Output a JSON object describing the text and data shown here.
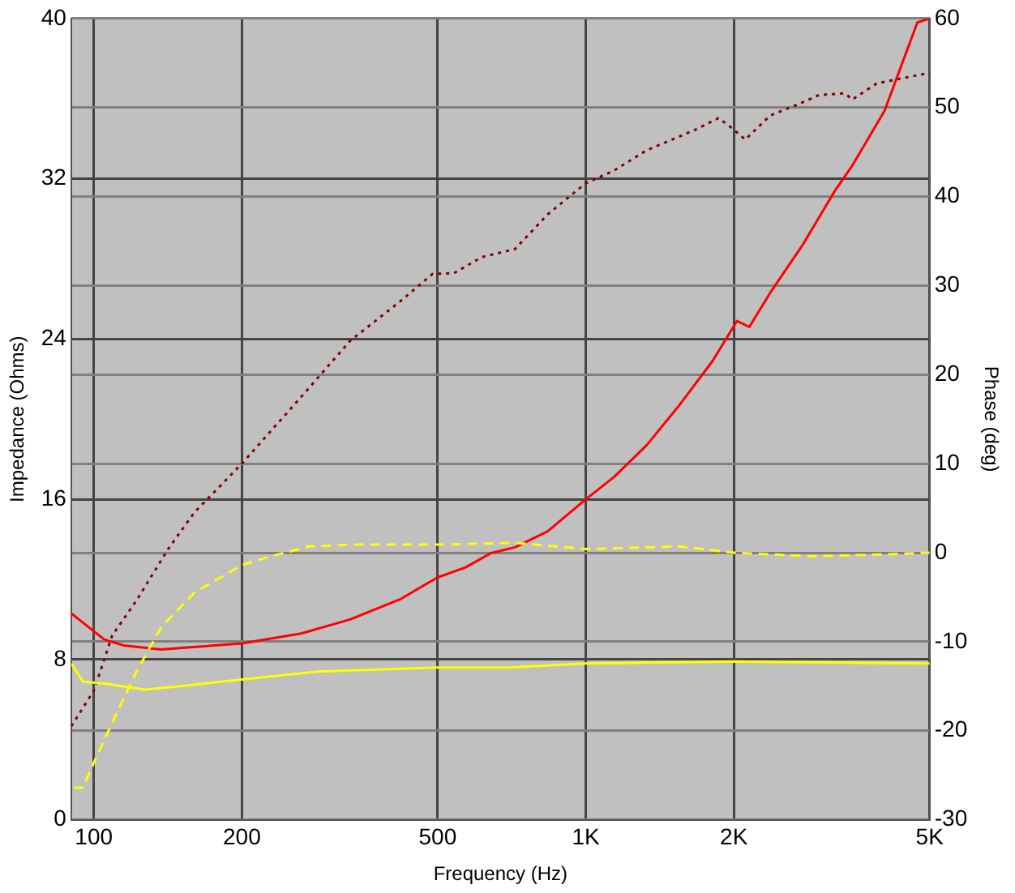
{
  "chart_data": {
    "type": "line",
    "xlabel": "Frequency (Hz)",
    "ylabel": "Impedance (Ohms)",
    "y2label": "Phase (deg)",
    "log": "x",
    "grid": true,
    "legend": false,
    "marker": "none",
    "xlim": [
      90,
      5000
    ],
    "xticks": [
      100,
      200,
      500,
      {
        "value": 1000,
        "label": "1K"
      },
      {
        "value": 2000,
        "label": "2K"
      },
      {
        "value": 5000,
        "label": "5K"
      }
    ],
    "ylim": [
      0,
      40
    ],
    "yticks": [
      0,
      8,
      16,
      24,
      32,
      40
    ],
    "y2lim": [
      -30,
      60
    ],
    "y2ticks": [
      -30,
      -20,
      -10,
      0,
      10,
      20,
      30,
      40,
      50,
      60
    ],
    "series": [
      {
        "color": "#ffff00",
        "line_style": "solid",
        "x": [
          90,
          95,
          105,
          127,
          154,
          200,
          285,
          500,
          700,
          1000,
          2000,
          5000
        ],
        "values": [
          7.8,
          6.9,
          6.8,
          6.5,
          6.7,
          7.0,
          7.4,
          7.6,
          7.6,
          7.8,
          7.9,
          7.8
        ]
      },
      {
        "color": "#ffff00",
        "line_style": "dashed",
        "axis": "y2",
        "x": [
          91,
          95,
          100,
          109,
          122,
          137,
          160,
          200,
          226,
          274,
          332,
          500,
          718,
          1000,
          1550,
          2000,
          2860,
          4000,
          5000
        ],
        "values": [
          -26.4,
          -26.4,
          -23.6,
          -19.1,
          -13.4,
          -8.4,
          -4.5,
          -1.4,
          -0.5,
          0.7,
          0.9,
          0.9,
          1.1,
          0.4,
          0.7,
          0,
          -0.4,
          -0.2,
          0
        ]
      },
      {
        "color": "#ff0000",
        "line_style": "solid",
        "x": [
          90,
          105,
          115,
          137,
          155,
          200,
          264,
          332,
          419,
          500,
          570,
          640,
          718,
          837,
          1000,
          1140,
          1330,
          1550,
          1810,
          2030,
          2150,
          2370,
          2760,
          3210,
          3470,
          4050,
          4720,
          5000
        ],
        "values": [
          10.3,
          9.0,
          8.7,
          8.5,
          8.6,
          8.8,
          9.3,
          10.0,
          11.0,
          12.1,
          12.6,
          13.3,
          13.6,
          14.4,
          16.0,
          17.1,
          18.7,
          20.7,
          22.9,
          24.9,
          24.6,
          26.3,
          28.7,
          31.4,
          32.6,
          35.4,
          39.8,
          40
        ]
      },
      {
        "color": "#800000",
        "line_style": "dotted",
        "axis": "y2",
        "x": [
          90,
          100,
          109,
          122,
          142,
          160,
          200,
          264,
          332,
          419,
          488,
          540,
          615,
          718,
          837,
          1000,
          1140,
          1330,
          1670,
          1860,
          1950,
          2110,
          2250,
          2370,
          2660,
          2980,
          3360,
          3480,
          3900,
          5000
        ],
        "values": [
          -19.5,
          -15.5,
          -9.3,
          -5.4,
          0.5,
          4.5,
          10,
          17.5,
          23.8,
          28.2,
          31.3,
          31.4,
          33.2,
          34.1,
          38,
          41.5,
          42.9,
          45.2,
          47.5,
          48.8,
          48.0,
          46.4,
          47.9,
          49.1,
          50.2,
          51.4,
          51.6,
          50.9,
          52.7,
          53.9
        ]
      }
    ]
  }
}
